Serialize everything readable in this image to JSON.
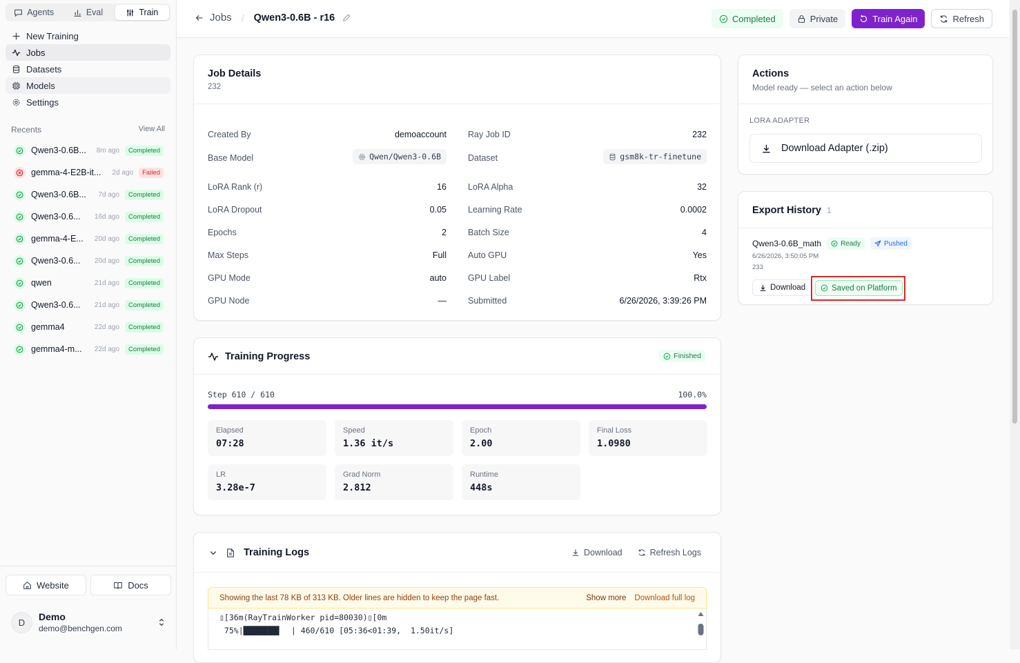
{
  "sidebar": {
    "tabs": [
      {
        "label": "Agents",
        "icon": "chat-icon"
      },
      {
        "label": "Eval",
        "icon": "chart-icon"
      },
      {
        "label": "Train",
        "icon": "sliders-icon",
        "active": true
      }
    ],
    "nav": [
      {
        "label": "New Training",
        "icon": "plus-icon"
      },
      {
        "label": "Jobs",
        "icon": "activity-icon",
        "active": true
      },
      {
        "label": "Datasets",
        "icon": "database-icon"
      },
      {
        "label": "Models",
        "icon": "cpu-icon"
      },
      {
        "label": "Settings",
        "icon": "gear-icon"
      }
    ],
    "recents_label": "Recents",
    "view_all": "View All",
    "recents": [
      {
        "name": "Qwen3-0.6B...",
        "time": "8m ago",
        "status": "Completed"
      },
      {
        "name": "gemma-4-E2B-it...",
        "time": "2d ago",
        "status": "Failed"
      },
      {
        "name": "Qwen3-0.6B...",
        "time": "7d ago",
        "status": "Completed"
      },
      {
        "name": "Qwen3-0.6...",
        "time": "16d ago",
        "status": "Completed"
      },
      {
        "name": "gemma-4-E...",
        "time": "20d ago",
        "status": "Completed"
      },
      {
        "name": "Qwen3-0.6...",
        "time": "20d ago",
        "status": "Completed"
      },
      {
        "name": "qwen",
        "time": "21d ago",
        "status": "Completed"
      },
      {
        "name": "Qwen3-0.6...",
        "time": "21d ago",
        "status": "Completed"
      },
      {
        "name": "gemma4",
        "time": "22d ago",
        "status": "Completed"
      },
      {
        "name": "gemma4-m...",
        "time": "22d ago",
        "status": "Completed"
      }
    ],
    "website_label": "Website",
    "docs_label": "Docs",
    "user": {
      "initial": "D",
      "name": "Demo",
      "email": "demo@benchgen.com"
    }
  },
  "header": {
    "back_label": "Jobs",
    "title": "Qwen3-0.6B - r16",
    "status": "Completed",
    "private": "Private",
    "train_again": "Train Again",
    "refresh": "Refresh"
  },
  "job_details": {
    "title": "Job Details",
    "id": "232",
    "left": [
      {
        "label": "Created By",
        "value": "demoaccount"
      },
      {
        "label": "Base Model",
        "value": "Qwen/Qwen3-0.6B",
        "chip": true
      },
      {
        "label": "LoRA Rank (r)",
        "value": "16"
      },
      {
        "label": "LoRA Dropout",
        "value": "0.05"
      },
      {
        "label": "Epochs",
        "value": "2"
      },
      {
        "label": "Max Steps",
        "value": "Full"
      },
      {
        "label": "GPU Mode",
        "value": "auto"
      },
      {
        "label": "GPU Node",
        "value": "—"
      }
    ],
    "right": [
      {
        "label": "Ray Job ID",
        "value": "232"
      },
      {
        "label": "Dataset",
        "value": "gsm8k-tr-finetune",
        "chip": true
      },
      {
        "label": "LoRA Alpha",
        "value": "32"
      },
      {
        "label": "Learning Rate",
        "value": "0.0002"
      },
      {
        "label": "Batch Size",
        "value": "4"
      },
      {
        "label": "Auto GPU",
        "value": "Yes"
      },
      {
        "label": "GPU Label",
        "value": "Rtx"
      },
      {
        "label": "Submitted",
        "value": "6/26/2026, 3:39:26 PM"
      }
    ]
  },
  "progress": {
    "title": "Training Progress",
    "badge": "Finished",
    "step": "Step 610 / 610",
    "percent": "100.0%",
    "fill_fraction": 1.0,
    "stats": [
      {
        "label": "Elapsed",
        "value": "07:28"
      },
      {
        "label": "Speed",
        "value": "1.36 it/s"
      },
      {
        "label": "Epoch",
        "value": "2.00"
      },
      {
        "label": "Final Loss",
        "value": "1.0980"
      },
      {
        "label": "LR",
        "value": "3.28e-7"
      },
      {
        "label": "Grad Norm",
        "value": "2.812"
      },
      {
        "label": "Runtime",
        "value": "448s"
      }
    ]
  },
  "logs": {
    "title": "Training Logs",
    "download": "Download",
    "refresh": "Refresh Logs",
    "banner": "Showing the last 78 KB of 313 KB. Older lines are hidden to keep the page fast.",
    "show_more": "Show more",
    "download_full": "Download full log",
    "lines": [
      "▯[36m(RayTrainWorker pid=80030)▯[0m",
      " 75%|███████▌  | 460/610 [05:36<01:39,  1.50it/s]"
    ]
  },
  "actions": {
    "title": "Actions",
    "subtitle": "Model ready — select an action below",
    "section": "LORA ADAPTER",
    "download_adapter": "Download Adapter (.zip)"
  },
  "export_history": {
    "title": "Export History",
    "count": "1",
    "item": {
      "name": "Qwen3-0.6B_math",
      "ready": "Ready",
      "pushed": "Pushed",
      "date": "6/26/2026, 3:50:05 PM",
      "id": "233",
      "download": "Download",
      "saved": "Saved on Platform"
    }
  },
  "colors": {
    "accent": "#7e22ce",
    "success": "#16a34a",
    "danger": "#dc2626",
    "highlight": "#dc2626"
  }
}
